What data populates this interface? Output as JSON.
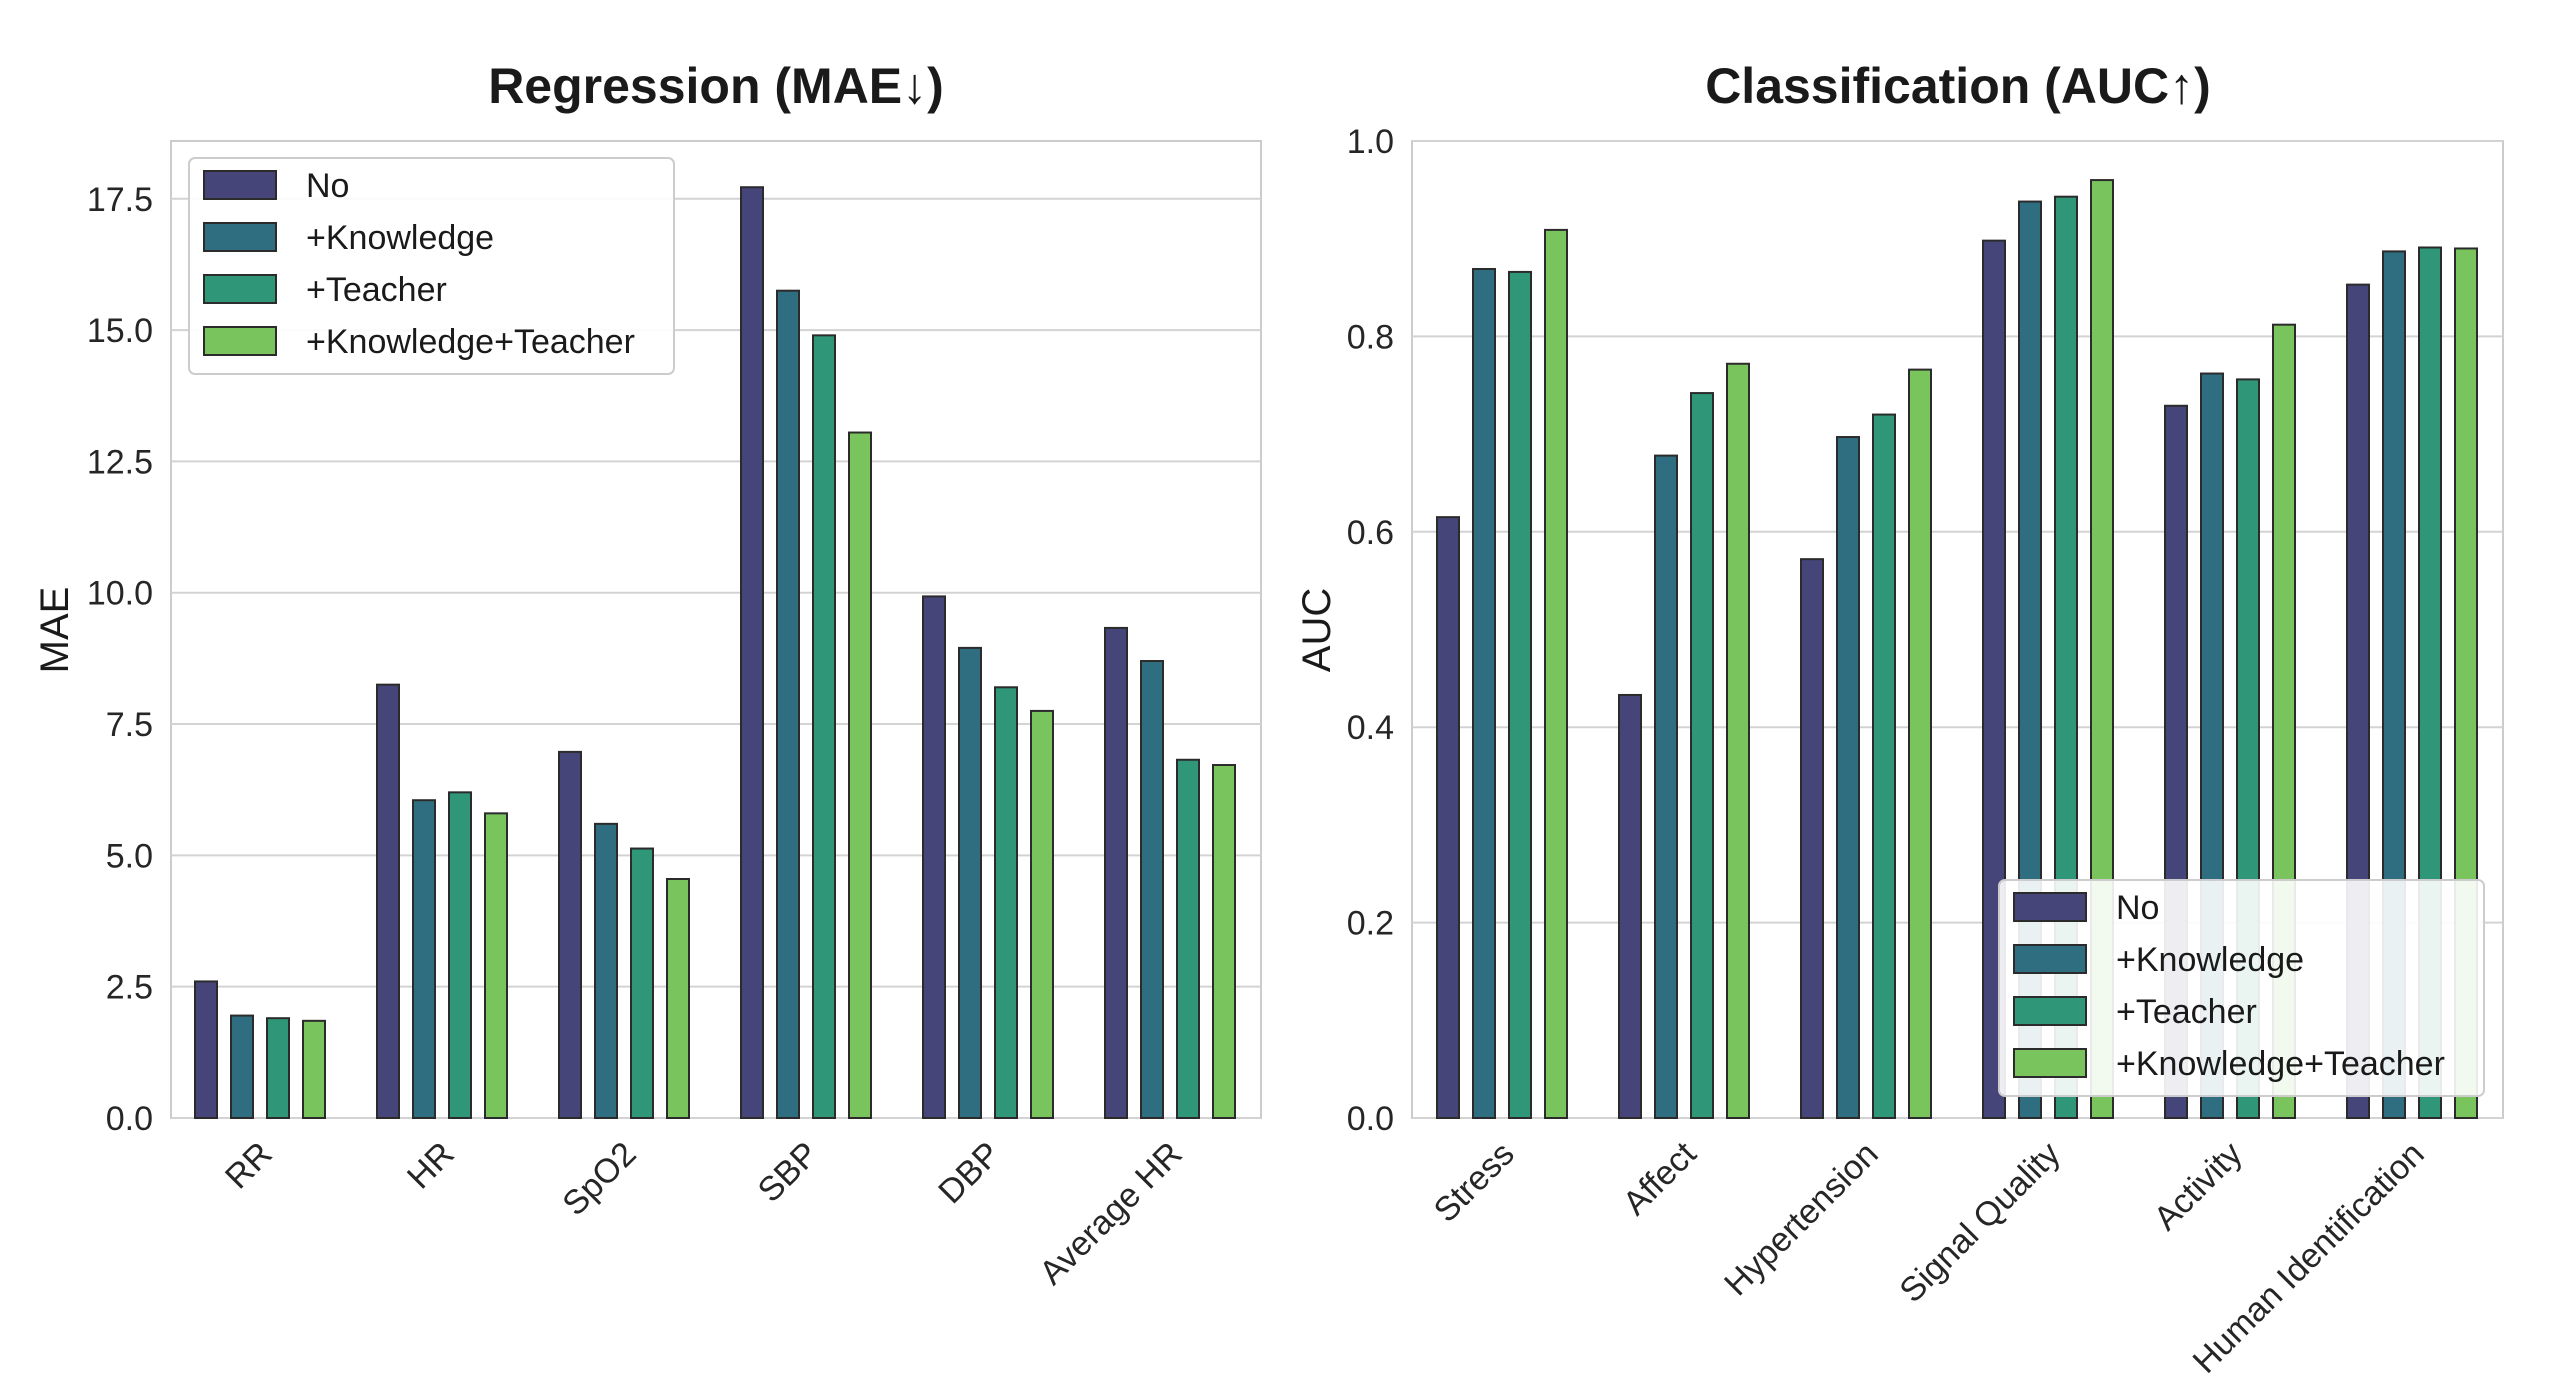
{
  "chart_data": [
    {
      "type": "bar",
      "title": "Regression (MAE↓)",
      "xlabel": "",
      "ylabel": "MAE",
      "ylim": [
        0,
        18.6
      ],
      "yticks": [
        "0.0",
        "2.5",
        "5.0",
        "7.5",
        "10.0",
        "12.5",
        "15.0",
        "17.5"
      ],
      "ytick_values": [
        0,
        2.5,
        5,
        7.5,
        10,
        12.5,
        15,
        17.5
      ],
      "grid": true,
      "legend_position": "top-left",
      "categories": [
        "RR",
        "HR",
        "SpO2",
        "SBP",
        "DBP",
        "Average HR"
      ],
      "series": [
        {
          "name": "No",
          "color": "#46457a",
          "values": [
            2.6,
            8.25,
            6.97,
            17.72,
            9.93,
            9.33
          ]
        },
        {
          "name": "+Knowledge",
          "color": "#2f6e80",
          "values": [
            1.95,
            6.05,
            5.6,
            15.75,
            8.95,
            8.7
          ]
        },
        {
          "name": "+Teacher",
          "color": "#2f9778",
          "values": [
            1.9,
            6.2,
            5.13,
            14.9,
            8.2,
            6.82
          ]
        },
        {
          "name": "+Knowledge+Teacher",
          "color": "#7ac45e",
          "values": [
            1.85,
            5.8,
            4.55,
            13.05,
            7.75,
            6.72
          ]
        }
      ]
    },
    {
      "type": "bar",
      "title": "Classification (AUC↑)",
      "xlabel": "",
      "ylabel": "AUC",
      "ylim": [
        0,
        1.0
      ],
      "yticks": [
        "0.0",
        "0.2",
        "0.4",
        "0.6",
        "0.8",
        "1.0"
      ],
      "ytick_values": [
        0,
        0.2,
        0.4,
        0.6,
        0.8,
        1.0
      ],
      "grid": true,
      "legend_position": "bottom-right",
      "categories": [
        "Stress",
        "Affect",
        "Hypertension",
        "Signal Quality",
        "Activity",
        "Human Identification"
      ],
      "series": [
        {
          "name": "No",
          "color": "#46457a",
          "values": [
            0.615,
            0.433,
            0.572,
            0.898,
            0.729,
            0.853
          ]
        },
        {
          "name": "+Knowledge",
          "color": "#2f6e80",
          "values": [
            0.869,
            0.678,
            0.697,
            0.938,
            0.762,
            0.887
          ]
        },
        {
          "name": "+Teacher",
          "color": "#2f9778",
          "values": [
            0.866,
            0.742,
            0.72,
            0.943,
            0.756,
            0.891
          ]
        },
        {
          "name": "+Knowledge+Teacher",
          "color": "#7ac45e",
          "values": [
            0.909,
            0.772,
            0.766,
            0.96,
            0.812,
            0.89
          ]
        }
      ]
    }
  ]
}
